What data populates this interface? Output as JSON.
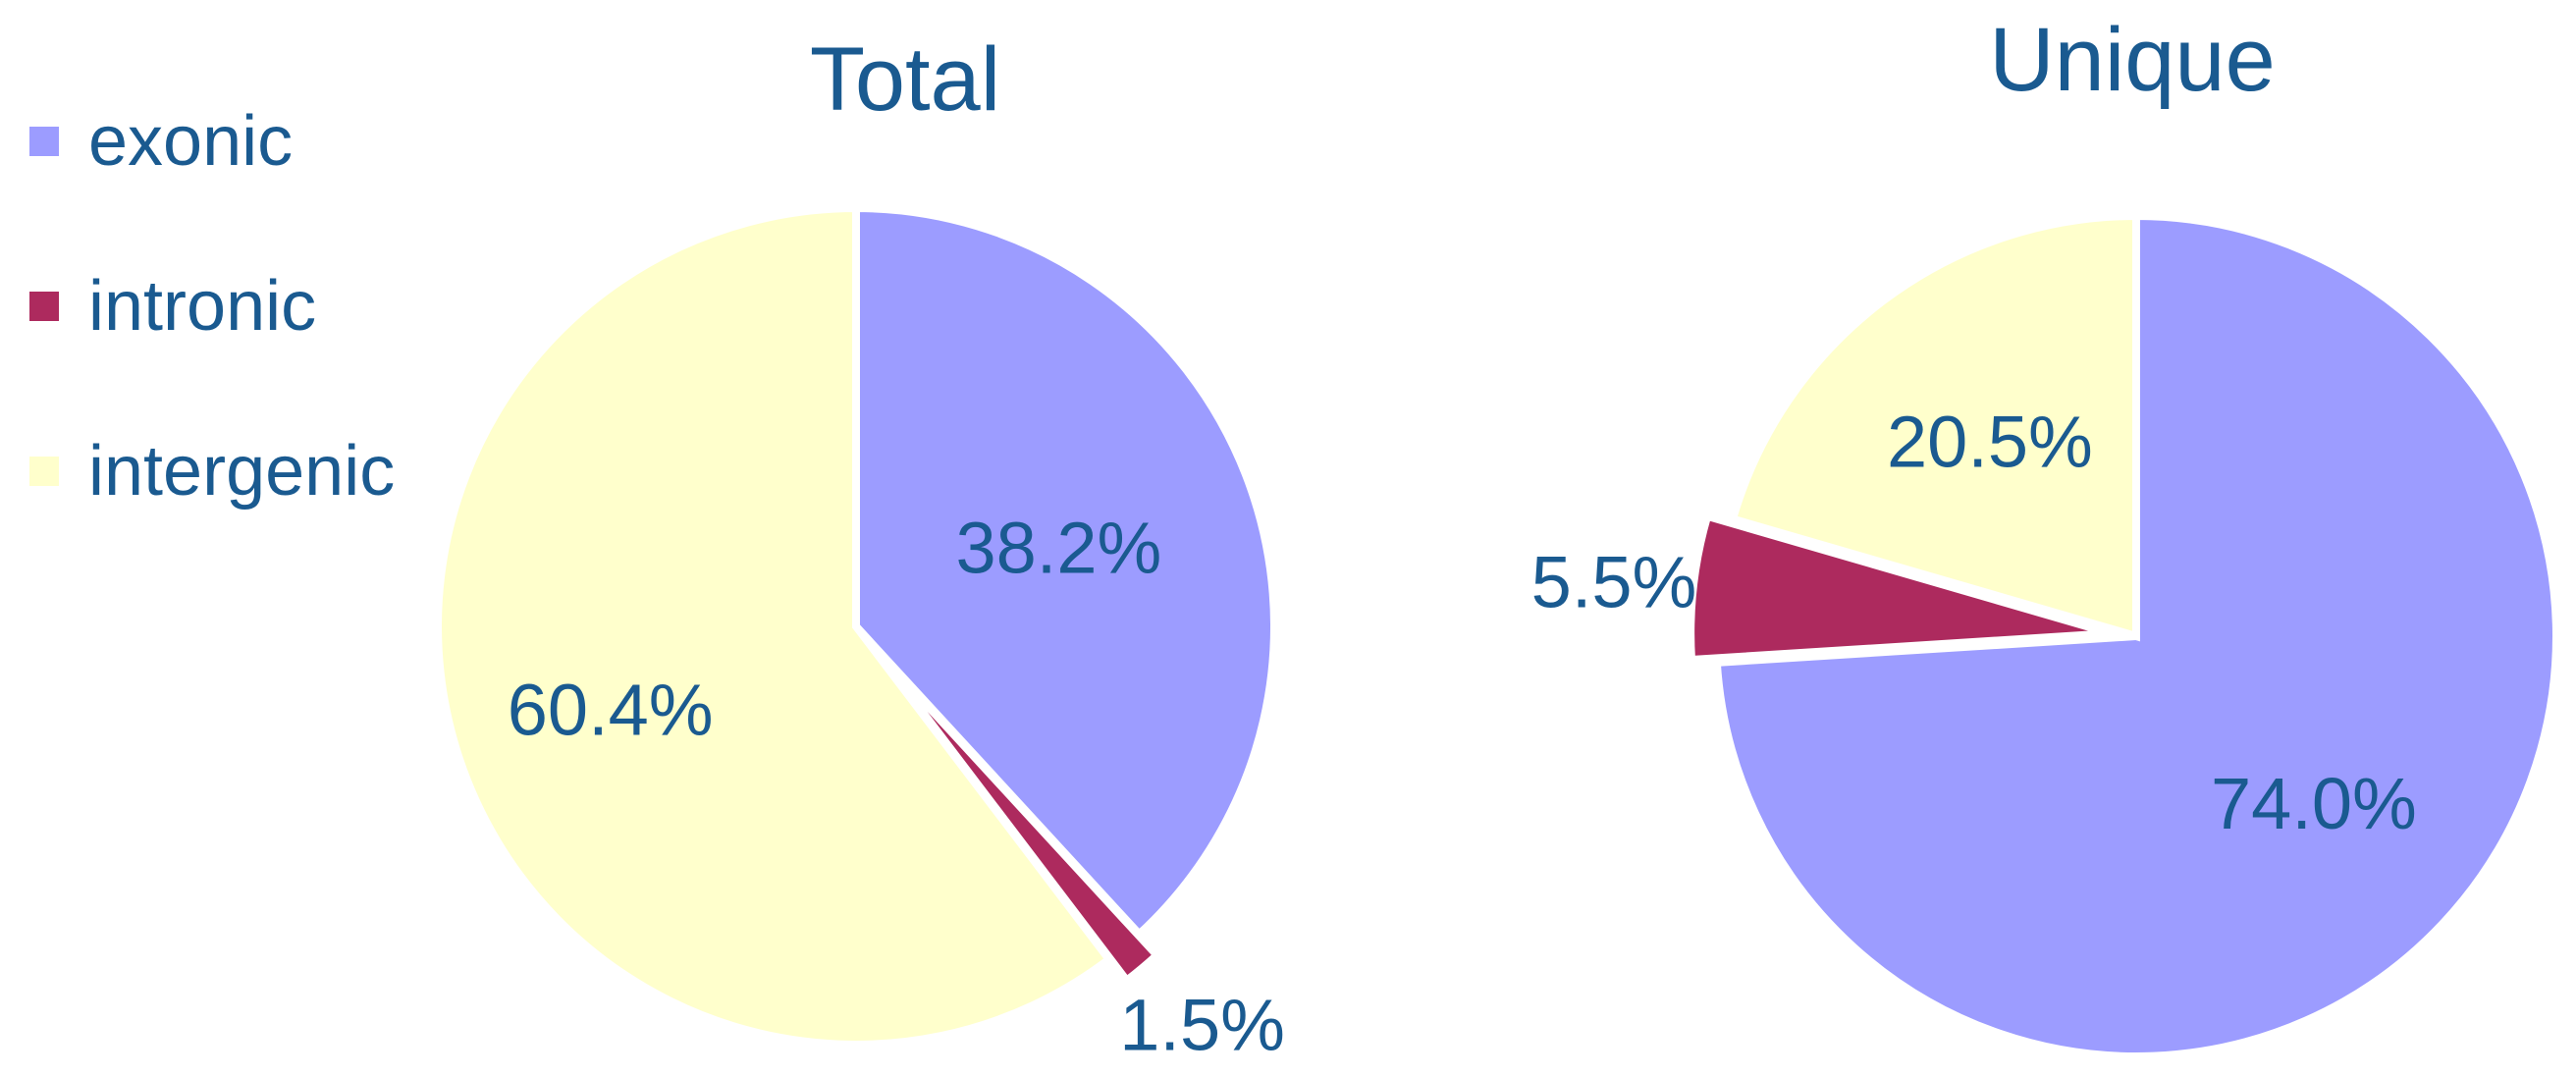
{
  "colors": {
    "text": "#1a5a90",
    "exonic": "#9c9cff",
    "intronic": "#ad2a5e",
    "intergenic": "#ffffcc"
  },
  "legend": [
    {
      "label": "exonic",
      "color": "#9c9cff"
    },
    {
      "label": "intronic",
      "color": "#ad2a5e"
    },
    {
      "label": "intergenic",
      "color": "#ffffcc"
    }
  ],
  "chart_data": [
    {
      "type": "pie",
      "title": "Total",
      "slices": [
        {
          "label": "exonic",
          "value": 38.2,
          "display": "38.2%",
          "color": "#9c9cff"
        },
        {
          "label": "intronic",
          "value": 1.5,
          "display": "1.5%",
          "color": "#ad2a5e"
        },
        {
          "label": "intergenic",
          "value": 60.4,
          "display": "60.4%",
          "color": "#ffffcc"
        }
      ]
    },
    {
      "type": "pie",
      "title": "Unique",
      "slices": [
        {
          "label": "exonic",
          "value": 74.0,
          "display": "74.0%",
          "color": "#9c9cff"
        },
        {
          "label": "intronic",
          "value": 5.5,
          "display": "5.5%",
          "color": "#ad2a5e"
        },
        {
          "label": "intergenic",
          "value": 20.5,
          "display": "20.5%",
          "color": "#ffffcc"
        }
      ]
    }
  ]
}
